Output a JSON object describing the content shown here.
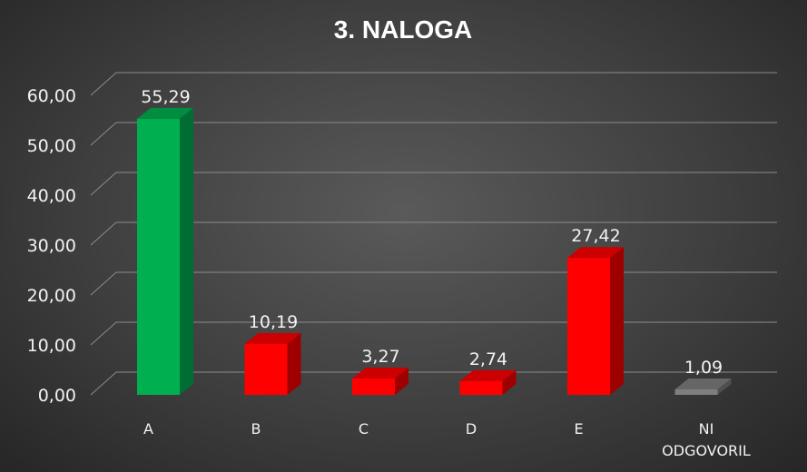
{
  "chart_data": {
    "type": "bar",
    "title": "3. NALOGA",
    "categories": [
      "A",
      "B",
      "C",
      "D",
      "E",
      "NI ODGOVORIL"
    ],
    "category_lines": [
      [
        "A"
      ],
      [
        "B"
      ],
      [
        "C"
      ],
      [
        "D"
      ],
      [
        "E"
      ],
      [
        "NI",
        "ODGOVORIL"
      ]
    ],
    "values": [
      55.29,
      10.19,
      3.27,
      2.74,
      27.42,
      1.09
    ],
    "value_labels": [
      "55,29",
      "10,19",
      "3,27",
      "2,74",
      "27,42",
      "1,09"
    ],
    "bar_colors": [
      "#00b050",
      "#ff0000",
      "#ff0000",
      "#ff0000",
      "#ff0000",
      "#7f7f7f"
    ],
    "ylim": [
      0,
      60
    ],
    "yticks": [
      0,
      10,
      20,
      30,
      40,
      50,
      60
    ],
    "ytick_labels": [
      "0,00",
      "10,00",
      "20,00",
      "30,00",
      "40,00",
      "50,00",
      "60,00"
    ],
    "xlabel": "",
    "ylabel": "",
    "grid": true,
    "legend": "none",
    "style": "3d-column"
  }
}
